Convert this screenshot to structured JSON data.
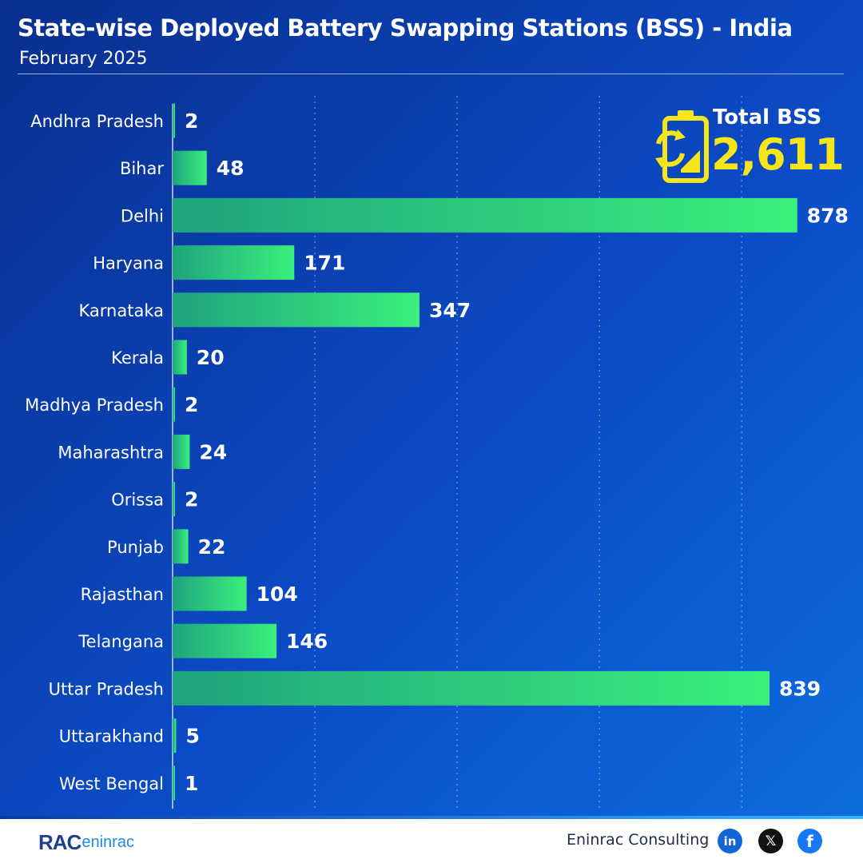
{
  "header": {
    "title": "State-wise Deployed Battery Swapping Stations (BSS) - India",
    "subtitle": "February 2025"
  },
  "total": {
    "label": "Total BSS",
    "value": "2,611",
    "icon": "battery-swap-icon",
    "color": "#f5e51b"
  },
  "chart_data": {
    "type": "bar",
    "orientation": "horizontal",
    "categories": [
      "Andhra Pradesh",
      "Bihar",
      "Delhi",
      "Haryana",
      "Karnataka",
      "Kerala",
      "Madhya Pradesh",
      "Maharashtra",
      "Orissa",
      "Punjab",
      "Rajasthan",
      "Telangana",
      "Uttar Pradesh",
      "Uttarakhand",
      "West Bengal"
    ],
    "values": [
      2,
      48,
      878,
      171,
      347,
      20,
      2,
      24,
      2,
      22,
      104,
      146,
      839,
      5,
      1
    ],
    "xlim": [
      0,
      912
    ],
    "grid": true,
    "legend": "none",
    "bar_color_start": "#1fa37e",
    "bar_color_end": "#3af07c"
  },
  "footer": {
    "logo_main": "RAC",
    "logo_sub": "eninrac",
    "company": "Eninrac Consulting",
    "social": [
      {
        "name": "linkedin-icon",
        "glyph": "in"
      },
      {
        "name": "x-icon",
        "glyph": "𝕏"
      },
      {
        "name": "facebook-icon",
        "glyph": "f"
      }
    ]
  }
}
